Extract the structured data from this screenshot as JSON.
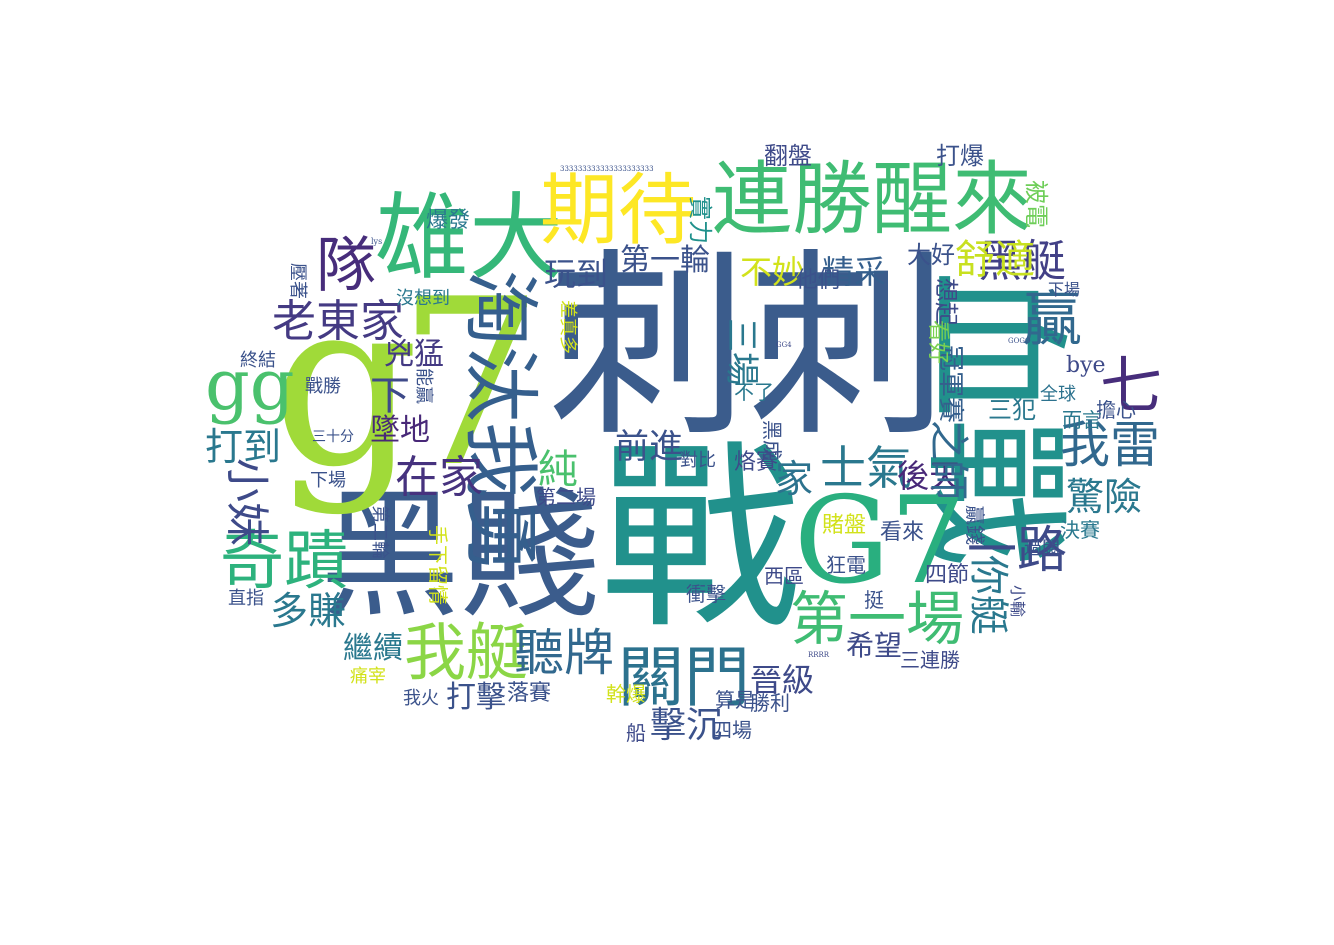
{
  "wordcloud": {
    "words": [
      {
        "text": "刺刺",
        "color": "#3b5c8c"
      },
      {
        "text": "戰",
        "color": "#21918c"
      },
      {
        "text": "黑賤",
        "color": "#3b5c8c"
      },
      {
        "text": "g7",
        "color": "#a0da39"
      },
      {
        "text": "血戰",
        "color": "#21918c"
      },
      {
        "text": "G7",
        "color": "#29af7f"
      },
      {
        "text": "連勝醒來",
        "color": "#3fbc73"
      },
      {
        "text": "雄大",
        "color": "#35b779"
      },
      {
        "text": "期待",
        "color": "#fde725"
      },
      {
        "text": "淘汰我勇",
        "color": "#355f8d"
      },
      {
        "text": "隊",
        "color": "#472d7b"
      },
      {
        "text": "奇蹟",
        "color": "#2db27d"
      },
      {
        "text": "gg",
        "color": "#4ac16d"
      },
      {
        "text": "我艇",
        "color": "#8bd646"
      },
      {
        "text": "關門",
        "color": "#2c728e"
      },
      {
        "text": "第一場",
        "color": "#3fbc73"
      },
      {
        "text": "聽牌",
        "color": "#31688e"
      },
      {
        "text": "老東家",
        "color": "#443a83"
      },
      {
        "text": "黑艇",
        "color": "#424086"
      },
      {
        "text": "贏",
        "color": "#31688e"
      },
      {
        "text": "七",
        "color": "#472d7b"
      },
      {
        "text": "我雷",
        "color": "#31688e"
      },
      {
        "text": "士氣",
        "color": "#2a788e"
      },
      {
        "text": "舒適",
        "color": "#c8e020"
      },
      {
        "text": "驚險",
        "color": "#2a788e"
      },
      {
        "text": "一路",
        "color": "#3e4a89"
      },
      {
        "text": "你艇",
        "color": "#2a788e"
      },
      {
        "text": "小妹",
        "color": "#3e4a89"
      },
      {
        "text": "在家",
        "color": "#46327e"
      },
      {
        "text": "多賺",
        "color": "#2a788e"
      },
      {
        "text": "打到",
        "color": "#2a788e"
      },
      {
        "text": "純",
        "color": "#4ac16d"
      },
      {
        "text": "前進",
        "color": "#3b528b"
      },
      {
        "text": "不妙",
        "color": "#d2e21b"
      },
      {
        "text": "精采",
        "color": "#355f8d"
      },
      {
        "text": "玩到",
        "color": "#3b528b"
      },
      {
        "text": "第一輪",
        "color": "#3b528b"
      },
      {
        "text": "家",
        "color": "#2c728e"
      },
      {
        "text": "後天",
        "color": "#482878"
      },
      {
        "text": "冠軍賽",
        "color": "#355f8d"
      },
      {
        "text": "之師",
        "color": "#31688e"
      },
      {
        "text": "三場",
        "color": "#2a788e"
      },
      {
        "text": "下",
        "color": "#3e4a89"
      },
      {
        "text": "兇猛",
        "color": "#443a83"
      },
      {
        "text": "墜地",
        "color": "#482878"
      },
      {
        "text": "擊沉",
        "color": "#3b528b"
      },
      {
        "text": "打擊",
        "color": "#3b528b"
      },
      {
        "text": "晉級",
        "color": "#3e4a89"
      },
      {
        "text": "繼續",
        "color": "#2a788e"
      },
      {
        "text": "希望",
        "color": "#3e4a89"
      },
      {
        "text": "爆發",
        "color": "#2a788e"
      },
      {
        "text": "實力",
        "color": "#21918c"
      },
      {
        "text": "翻盤",
        "color": "#3e4a89"
      },
      {
        "text": "打爆",
        "color": "#3b528b"
      },
      {
        "text": "被電",
        "color": "#6ece58"
      },
      {
        "text": "大好",
        "color": "#3b528b"
      },
      {
        "text": "想起",
        "color": "#3e4a89"
      },
      {
        "text": "看好",
        "color": "#7ad151"
      },
      {
        "text": "他們",
        "color": "#3b528b"
      },
      {
        "text": "三犯",
        "color": "#2a788e"
      },
      {
        "text": "bye",
        "color": "#3e4a89"
      },
      {
        "text": "全球",
        "color": "#2c728e"
      },
      {
        "text": "擔心",
        "color": "#3b528b"
      },
      {
        "text": "而言",
        "color": "#2a788e"
      },
      {
        "text": "不了",
        "color": "#2a788e"
      },
      {
        "text": "黑成",
        "color": "#3b528b"
      },
      {
        "text": "烙賽",
        "color": "#3e4a89"
      },
      {
        "text": "對比",
        "color": "#3b528b"
      },
      {
        "text": "第二場",
        "color": "#3e4a89"
      },
      {
        "text": "決賽",
        "color": "#2a788e"
      },
      {
        "text": "過關",
        "color": "#3b528b"
      },
      {
        "text": "賭盤",
        "color": "#d2e21b"
      },
      {
        "text": "看來",
        "color": "#3b528b"
      },
      {
        "text": "贏錢",
        "color": "#3b528b"
      },
      {
        "text": "四節",
        "color": "#3e4a89"
      },
      {
        "text": "小輸",
        "color": "#3e4a89"
      },
      {
        "text": "狂電",
        "color": "#3b528b"
      },
      {
        "text": "西區",
        "color": "#3e4a89"
      },
      {
        "text": "衝擊",
        "color": "#3b528b"
      },
      {
        "text": "挺",
        "color": "#3b528b"
      },
      {
        "text": "三連勝",
        "color": "#3e4a89"
      },
      {
        "text": "勝利",
        "color": "#3b528b"
      },
      {
        "text": "算是",
        "color": "#3b528b"
      },
      {
        "text": "四場",
        "color": "#3b528b"
      },
      {
        "text": "幹爆",
        "color": "#d2e21b"
      },
      {
        "text": "船",
        "color": "#3e4a89"
      },
      {
        "text": "落賽",
        "color": "#3b528b"
      },
      {
        "text": "我火",
        "color": "#3b528b"
      },
      {
        "text": "痛宰",
        "color": "#d2e21b"
      },
      {
        "text": "直指",
        "color": "#3b528b"
      },
      {
        "text": "第二輪",
        "color": "#3b528b"
      },
      {
        "text": "手下留情",
        "color": "#d2e21b"
      },
      {
        "text": "終結",
        "color": "#3b528b"
      },
      {
        "text": "戰勝",
        "color": "#3b528b"
      },
      {
        "text": "三十分",
        "color": "#3b528b"
      },
      {
        "text": "下場",
        "color": "#3b528b"
      },
      {
        "text": "壓著",
        "color": "#3b528b"
      },
      {
        "text": "能贏",
        "color": "#3b528b"
      },
      {
        "text": "沒想到",
        "color": "#2a788e"
      },
      {
        "text": "差真多",
        "color": "#d2e21b"
      },
      {
        "text": "下場",
        "color": "#3b528b"
      },
      {
        "text": "333333333333333333333",
        "color": "#3b528b"
      },
      {
        "text": "GOGO",
        "color": "#3b528b"
      },
      {
        "text": "lys",
        "color": "#3b528b"
      },
      {
        "text": "RRRR",
        "color": "#3e4a89"
      },
      {
        "text": "GG4",
        "color": "#3e4a89"
      }
    ]
  }
}
